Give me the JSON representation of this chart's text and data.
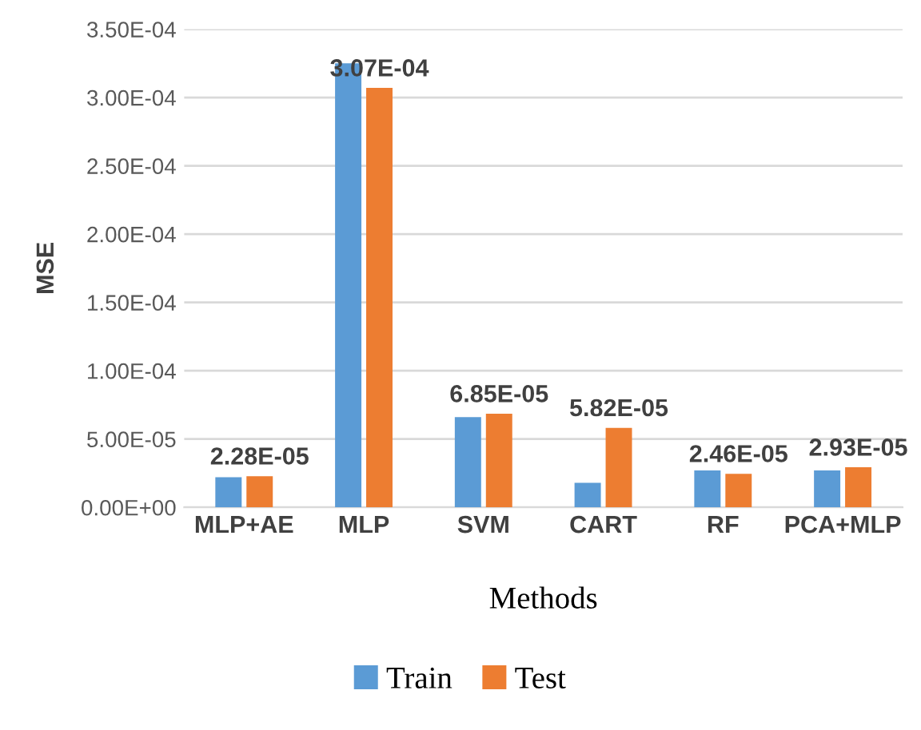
{
  "chart_data": {
    "type": "bar",
    "ylabel": "MSE",
    "xlabel": "Methods",
    "categories": [
      "MLP+AE",
      "MLP",
      "SVM",
      "CART",
      "RF",
      "PCA+MLP"
    ],
    "series": [
      {
        "name": "Train",
        "color": "#5b9bd5",
        "values": [
          2.2e-05,
          0.000325,
          6.6e-05,
          1.8e-05,
          2.7e-05,
          2.7e-05
        ]
      },
      {
        "name": "Test",
        "color": "#ed7d31",
        "values": [
          2.28e-05,
          0.000307,
          6.85e-05,
          5.82e-05,
          2.46e-05,
          2.93e-05
        ],
        "value_labels": [
          "2.28E-05",
          "3.07E-04",
          "6.85E-05",
          "5.82E-05",
          "2.46E-05",
          "2.93E-05"
        ]
      }
    ],
    "ylim": [
      0,
      0.00035
    ],
    "yticks": [
      {
        "value": 0,
        "label": "0.00E+00"
      },
      {
        "value": 5e-05,
        "label": "5.00E-05"
      },
      {
        "value": 0.0001,
        "label": "1.00E-04"
      },
      {
        "value": 0.00015,
        "label": "1.50E-04"
      },
      {
        "value": 0.0002,
        "label": "2.00E-04"
      },
      {
        "value": 0.00025,
        "label": "2.50E-04"
      },
      {
        "value": 0.0003,
        "label": "3.00E-04"
      },
      {
        "value": 0.00035,
        "label": "3.50E-04"
      }
    ],
    "grid": "y",
    "legend": "bottom"
  }
}
